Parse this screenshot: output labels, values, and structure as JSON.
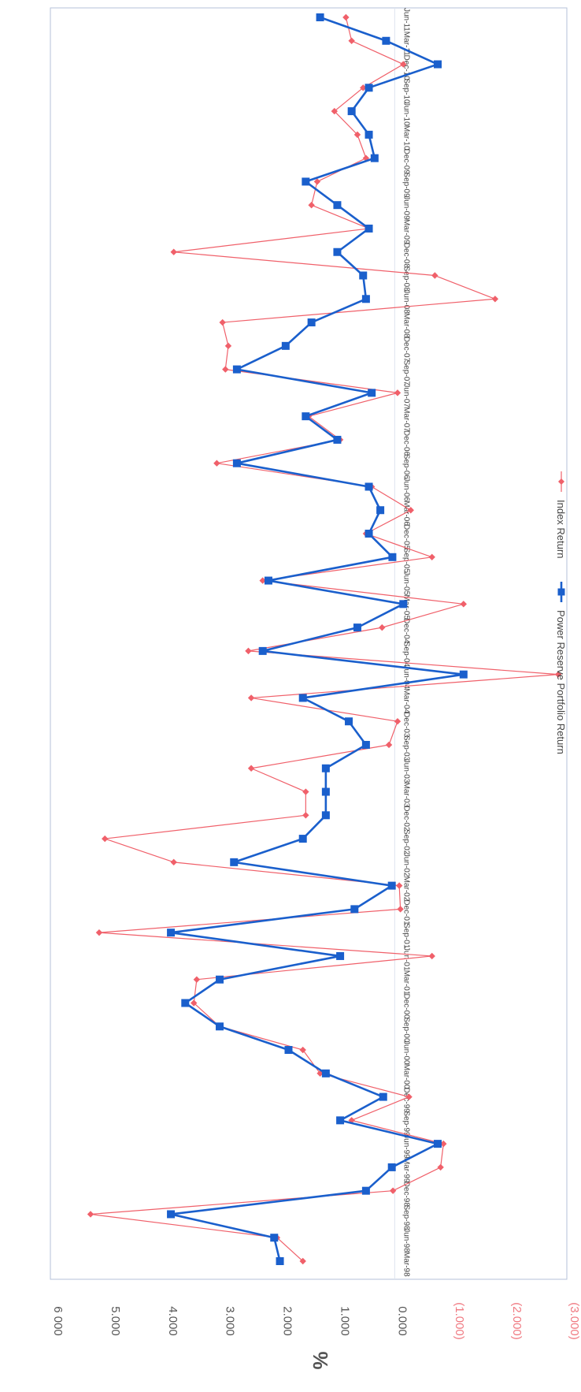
{
  "chart_data": {
    "type": "line",
    "orientation": "rotated-90",
    "ylabel": "%",
    "ylim": [
      -3000,
      6000
    ],
    "y_ticks": [
      {
        "value": 6000,
        "label": "6 000"
      },
      {
        "value": 5000,
        "label": "5.000"
      },
      {
        "value": 4000,
        "label": "4.000"
      },
      {
        "value": 3000,
        "label": "3.000"
      },
      {
        "value": 2000,
        "label": "2.000"
      },
      {
        "value": 1000,
        "label": "1.000"
      },
      {
        "value": 0,
        "label": "0.000"
      },
      {
        "value": -1000,
        "label": "(1.000)"
      },
      {
        "value": -2000,
        "label": "(2.000)"
      },
      {
        "value": -3000,
        "label": "(3.000)"
      }
    ],
    "categories": [
      "Mar-98",
      "Jun-98",
      "Sep-98",
      "Dec-98",
      "Mar-99",
      "Jun-99",
      "Sep-99",
      "Dec-99",
      "Mar-00",
      "Jun-00",
      "Sep-00",
      "Dec-00",
      "Mar-01",
      "Jun-01",
      "Sep-01",
      "Dec-01",
      "Mar-02",
      "Jun-02",
      "Sep-02",
      "Dec-02",
      "Mar-03",
      "Jun-03",
      "Sep-03",
      "Dec-03",
      "Mar-04",
      "Jun-04",
      "Sep-04",
      "Dec-04",
      "Mar-05",
      "Jun-05",
      "Sep-05",
      "Dec-05",
      "Mar-06",
      "Jun-06",
      "Sep-06",
      "Dec-06",
      "Mar-07",
      "Jun-07",
      "Sep-07",
      "Dec-07",
      "Mar-08",
      "Jun-08",
      "Sep-08",
      "Dec-08",
      "Mar-09",
      "Jun-09",
      "Sep-09",
      "Dec-09",
      "Mar-10",
      "Jun-10",
      "Sep-10",
      "Dec-10",
      "Mar-11",
      "Jun-11"
    ],
    "series": [
      {
        "name": "Index Return",
        "color": "#f0606a",
        "marker": "diamond",
        "values": [
          1600,
          2050,
          5300,
          30,
          -800,
          -850,
          750,
          -250,
          1300,
          1600,
          3050,
          3500,
          3450,
          -650,
          5150,
          -100,
          -80,
          3850,
          5050,
          1550,
          1550,
          2500,
          100,
          -50,
          2500,
          -2850,
          2550,
          220,
          -1200,
          2300,
          -650,
          500,
          -280,
          400,
          3100,
          950,
          1500,
          -50,
          2950,
          2900,
          3000,
          -1750,
          -700,
          3850,
          450,
          1450,
          1350,
          500,
          650,
          1050,
          550,
          -150,
          750,
          850
        ]
      },
      {
        "name": "Power Reserve Portfolio Return",
        "color": "#1a5fcc",
        "marker": "square",
        "values": [
          2000,
          2100,
          3900,
          500,
          50,
          -750,
          950,
          200,
          1200,
          1850,
          3050,
          3650,
          3050,
          950,
          3900,
          700,
          50,
          2800,
          1600,
          1200,
          1200,
          1200,
          500,
          800,
          1600,
          -1200,
          2300,
          650,
          -150,
          2200,
          40,
          450,
          250,
          450,
          2750,
          1000,
          1550,
          400,
          2750,
          1900,
          1450,
          500,
          550,
          1000,
          450,
          1000,
          1550,
          350,
          450,
          750,
          450,
          -750,
          150,
          1300
        ]
      }
    ]
  }
}
